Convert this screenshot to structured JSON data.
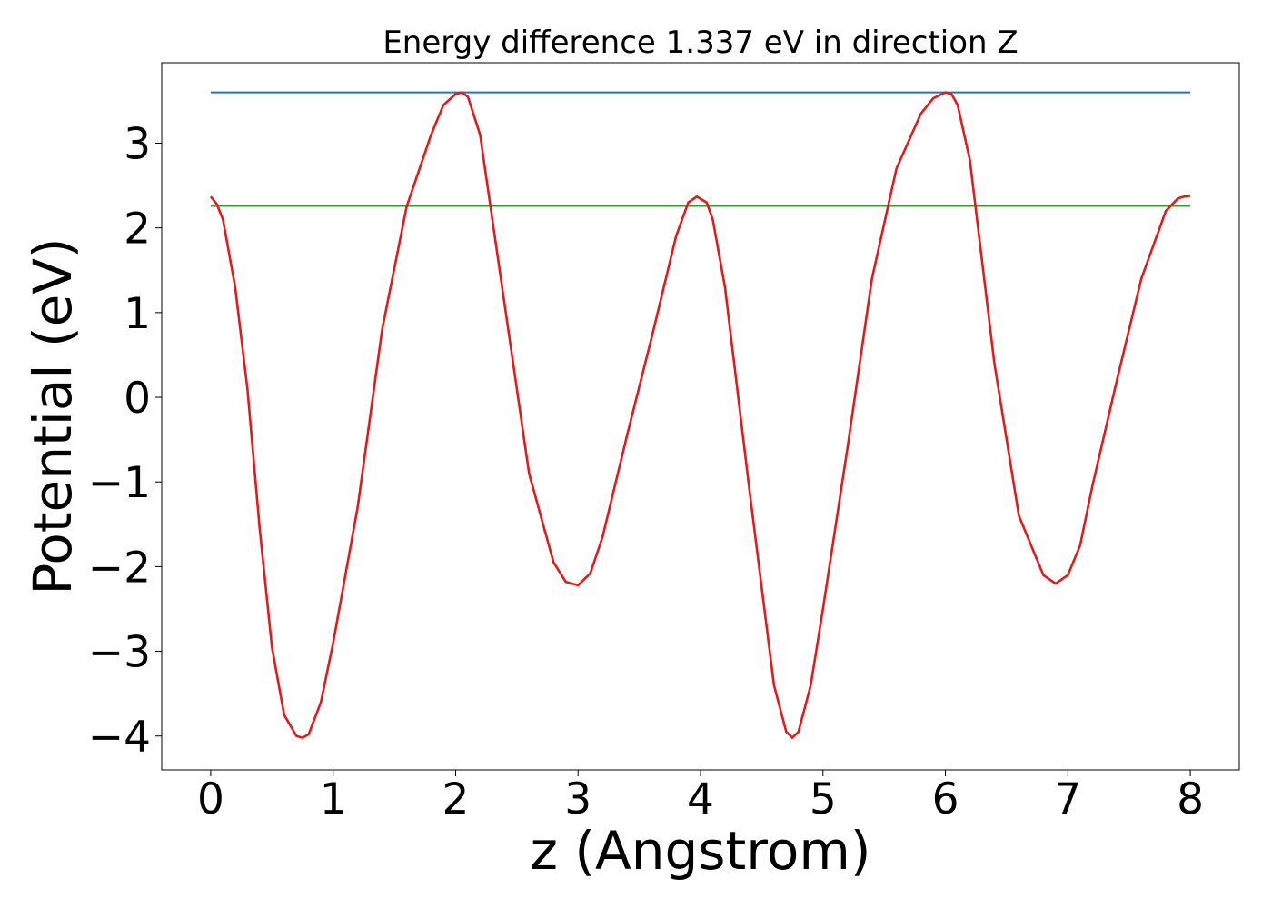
{
  "chart_data": {
    "type": "line",
    "title": "Energy difference 1.337 eV in direction Z",
    "xlabel": "z (Angstrom)",
    "ylabel": "Potential (eV)",
    "xlim": [
      -0.4,
      8.4
    ],
    "ylim": [
      -4.4,
      3.95
    ],
    "xticks": [
      0,
      1,
      2,
      3,
      4,
      5,
      6,
      7,
      8
    ],
    "xtick_labels": [
      "0",
      "1",
      "2",
      "3",
      "4",
      "5",
      "6",
      "7",
      "8"
    ],
    "yticks": [
      -4,
      -3,
      -2,
      -1,
      0,
      1,
      2,
      3
    ],
    "ytick_labels": [
      "−4",
      "−3",
      "−2",
      "−1",
      "0",
      "1",
      "2",
      "3"
    ],
    "grid": false,
    "legend": "none",
    "series": [
      {
        "color": "#1f77b4",
        "x": [
          0,
          8
        ],
        "y": [
          3.6,
          3.6
        ]
      },
      {
        "color": "#2ca02c",
        "x": [
          0,
          8
        ],
        "y": [
          2.26,
          2.26
        ]
      },
      {
        "color": "#e31a1c",
        "x": [
          0,
          0.05,
          0.1,
          0.2,
          0.3,
          0.4,
          0.5,
          0.6,
          0.7,
          0.75,
          0.8,
          0.9,
          1.0,
          1.2,
          1.4,
          1.6,
          1.8,
          1.9,
          2.0,
          2.05,
          2.1,
          2.2,
          2.4,
          2.6,
          2.8,
          2.9,
          3.0,
          3.1,
          3.2,
          3.4,
          3.6,
          3.8,
          3.9,
          3.97,
          4.05,
          4.1,
          4.2,
          4.4,
          4.6,
          4.7,
          4.75,
          4.8,
          4.9,
          5.0,
          5.2,
          5.4,
          5.6,
          5.8,
          5.9,
          6.0,
          6.05,
          6.1,
          6.2,
          6.4,
          6.6,
          6.8,
          6.9,
          7.0,
          7.1,
          7.2,
          7.4,
          7.6,
          7.8,
          7.9,
          7.95,
          8.0
        ],
        "y": [
          2.37,
          2.28,
          2.1,
          1.3,
          0.1,
          -1.55,
          -2.95,
          -3.75,
          -4.0,
          -4.02,
          -3.98,
          -3.6,
          -2.9,
          -1.3,
          0.8,
          2.25,
          3.1,
          3.45,
          3.58,
          3.6,
          3.55,
          3.1,
          1.1,
          -0.9,
          -1.95,
          -2.18,
          -2.22,
          -2.08,
          -1.65,
          -0.45,
          0.7,
          1.9,
          2.3,
          2.37,
          2.3,
          2.1,
          1.3,
          -1.1,
          -3.4,
          -3.95,
          -4.02,
          -3.95,
          -3.4,
          -2.5,
          -0.6,
          1.4,
          2.7,
          3.35,
          3.53,
          3.6,
          3.58,
          3.45,
          2.8,
          0.4,
          -1.4,
          -2.1,
          -2.2,
          -2.1,
          -1.75,
          -1.05,
          0.2,
          1.4,
          2.2,
          2.35,
          2.37,
          2.38
        ]
      }
    ]
  }
}
